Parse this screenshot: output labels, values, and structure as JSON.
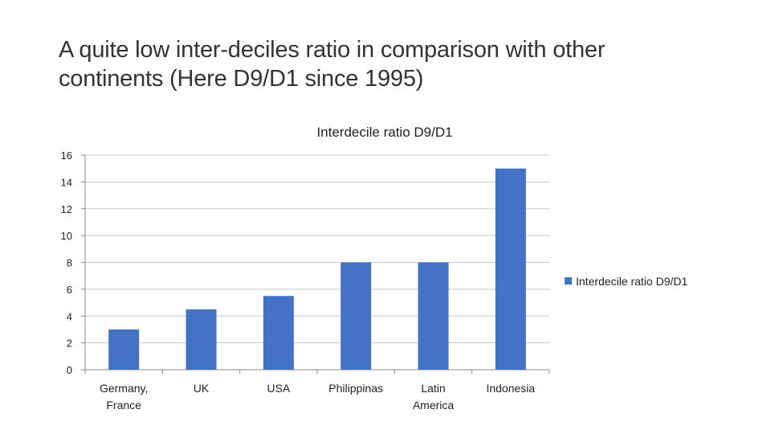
{
  "slide": {
    "title_line1": "A quite low inter-deciles ratio in comparison with other",
    "title_line2": "continents (Here D9/D1 since 1995)"
  },
  "chart_data": {
    "type": "bar",
    "title": "Interdecile ratio D9/D1",
    "categories": [
      [
        "Germany,",
        "France"
      ],
      [
        "UK"
      ],
      [
        "USA"
      ],
      [
        "Philippinas"
      ],
      [
        "Latin",
        "America"
      ],
      [
        "Indonesia"
      ]
    ],
    "series": [
      {
        "name": "Interdecile ratio D9/D1",
        "values": [
          3,
          4.5,
          5.5,
          8,
          8,
          15
        ],
        "color": "#4472C4"
      }
    ],
    "ylim": [
      0,
      16
    ],
    "yticks": [
      0,
      2,
      4,
      6,
      8,
      10,
      12,
      14,
      16
    ],
    "grid": true,
    "legend": "right"
  }
}
